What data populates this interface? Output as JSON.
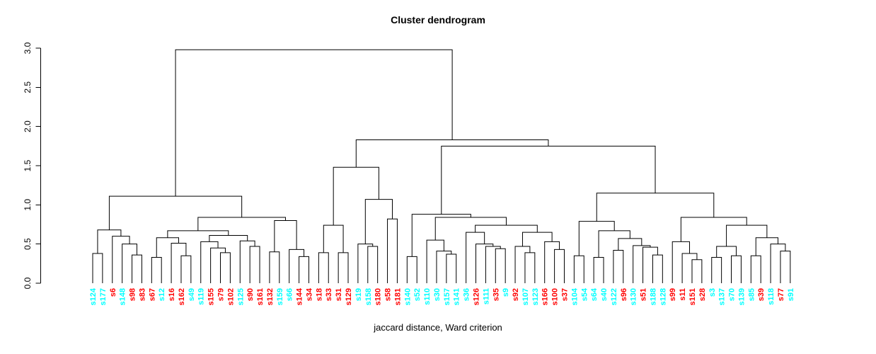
{
  "title": "Cluster dendrogram",
  "xlabel": "jaccard distance, Ward criterion",
  "y_axis": {
    "ticks": [
      0,
      0.5,
      1,
      1.5,
      2,
      2.5,
      3
    ],
    "tick_labels": [
      "0.0",
      "0.5",
      "1.0",
      "1.5",
      "2.0",
      "2.5",
      "3.0"
    ],
    "range": [
      0,
      3
    ]
  },
  "colors": {
    "line": "#000000",
    "axis": "#000000",
    "background": "#ffffff",
    "cluster_red": "#ff0000",
    "cluster_cyan": "#00ffff"
  },
  "chart_data": {
    "type": "dendrogram",
    "title": "Cluster dendrogram",
    "sub": "jaccard distance, Ward criterion",
    "ylim": [
      0,
      3
    ],
    "leaves": [
      {
        "label": "s124",
        "cluster": "cyan"
      },
      {
        "label": "s177",
        "cluster": "cyan"
      },
      {
        "label": "s6",
        "cluster": "red"
      },
      {
        "label": "s148",
        "cluster": "cyan"
      },
      {
        "label": "s98",
        "cluster": "red"
      },
      {
        "label": "s83",
        "cluster": "red"
      },
      {
        "label": "s67",
        "cluster": "red"
      },
      {
        "label": "s12",
        "cluster": "cyan"
      },
      {
        "label": "s16",
        "cluster": "red"
      },
      {
        "label": "s162",
        "cluster": "red"
      },
      {
        "label": "s49",
        "cluster": "cyan"
      },
      {
        "label": "s119",
        "cluster": "cyan"
      },
      {
        "label": "s155",
        "cluster": "red"
      },
      {
        "label": "s79",
        "cluster": "red"
      },
      {
        "label": "s102",
        "cluster": "red"
      },
      {
        "label": "s125",
        "cluster": "cyan"
      },
      {
        "label": "s90",
        "cluster": "red"
      },
      {
        "label": "s161",
        "cluster": "red"
      },
      {
        "label": "s132",
        "cluster": "red"
      },
      {
        "label": "s159",
        "cluster": "cyan"
      },
      {
        "label": "s66",
        "cluster": "cyan"
      },
      {
        "label": "s144",
        "cluster": "red"
      },
      {
        "label": "s34",
        "cluster": "red"
      },
      {
        "label": "s18",
        "cluster": "red"
      },
      {
        "label": "s33",
        "cluster": "red"
      },
      {
        "label": "s31",
        "cluster": "red"
      },
      {
        "label": "s129",
        "cluster": "red"
      },
      {
        "label": "s19",
        "cluster": "cyan"
      },
      {
        "label": "s158",
        "cluster": "cyan"
      },
      {
        "label": "s180",
        "cluster": "red"
      },
      {
        "label": "s58",
        "cluster": "red"
      },
      {
        "label": "s181",
        "cluster": "red"
      },
      {
        "label": "s140",
        "cluster": "cyan"
      },
      {
        "label": "s52",
        "cluster": "cyan"
      },
      {
        "label": "s110",
        "cluster": "cyan"
      },
      {
        "label": "s30",
        "cluster": "cyan"
      },
      {
        "label": "s157",
        "cluster": "cyan"
      },
      {
        "label": "s141",
        "cluster": "cyan"
      },
      {
        "label": "s36",
        "cluster": "cyan"
      },
      {
        "label": "s126",
        "cluster": "red"
      },
      {
        "label": "s111",
        "cluster": "cyan"
      },
      {
        "label": "s35",
        "cluster": "red"
      },
      {
        "label": "s9",
        "cluster": "cyan"
      },
      {
        "label": "s92",
        "cluster": "red"
      },
      {
        "label": "s107",
        "cluster": "cyan"
      },
      {
        "label": "s123",
        "cluster": "cyan"
      },
      {
        "label": "s166",
        "cluster": "red"
      },
      {
        "label": "s100",
        "cluster": "red"
      },
      {
        "label": "s37",
        "cluster": "red"
      },
      {
        "label": "s104",
        "cluster": "cyan"
      },
      {
        "label": "s54",
        "cluster": "cyan"
      },
      {
        "label": "s64",
        "cluster": "cyan"
      },
      {
        "label": "s40",
        "cluster": "cyan"
      },
      {
        "label": "s122",
        "cluster": "cyan"
      },
      {
        "label": "s96",
        "cluster": "red"
      },
      {
        "label": "s130",
        "cluster": "cyan"
      },
      {
        "label": "s51",
        "cluster": "red"
      },
      {
        "label": "s188",
        "cluster": "cyan"
      },
      {
        "label": "s128",
        "cluster": "cyan"
      },
      {
        "label": "s99",
        "cluster": "red"
      },
      {
        "label": "s11",
        "cluster": "red"
      },
      {
        "label": "s151",
        "cluster": "red"
      },
      {
        "label": "s28",
        "cluster": "red"
      },
      {
        "label": "s3",
        "cluster": "cyan"
      },
      {
        "label": "s137",
        "cluster": "cyan"
      },
      {
        "label": "s70",
        "cluster": "cyan"
      },
      {
        "label": "s139",
        "cluster": "cyan"
      },
      {
        "label": "s85",
        "cluster": "cyan"
      },
      {
        "label": "s39",
        "cluster": "red"
      },
      {
        "label": "s118",
        "cluster": "cyan"
      },
      {
        "label": "s77",
        "cluster": "red"
      },
      {
        "label": "s91",
        "cluster": "cyan"
      }
    ],
    "tree": {
      "h": 2.98,
      "c": [
        {
          "h": 1.11,
          "c": [
            {
              "h": 0.68,
              "c": [
                {
                  "h": 0.38,
                  "c": [
                    "s124",
                    "s177"
                  ]
                },
                {
                  "h": 0.6,
                  "c": [
                    "s6",
                    {
                      "h": 0.5,
                      "c": [
                        "s148",
                        {
                          "h": 0.36,
                          "c": [
                            "s98",
                            "s83"
                          ]
                        }
                      ]
                    }
                  ]
                }
              ]
            },
            {
              "h": 0.84,
              "c": [
                {
                  "h": 0.67,
                  "c": [
                    {
                      "h": 0.58,
                      "c": [
                        {
                          "h": 0.33,
                          "c": [
                            "s67",
                            "s12"
                          ]
                        },
                        {
                          "h": 0.51,
                          "c": [
                            "s16",
                            {
                              "h": 0.35,
                              "c": [
                                "s162",
                                "s49"
                              ]
                            }
                          ]
                        }
                      ]
                    },
                    {
                      "h": 0.61,
                      "c": [
                        {
                          "h": 0.53,
                          "c": [
                            "s119",
                            {
                              "h": 0.45,
                              "c": [
                                "s155",
                                {
                                  "h": 0.39,
                                  "c": [
                                    "s79",
                                    "s102"
                                  ]
                                }
                              ]
                            }
                          ]
                        },
                        {
                          "h": 0.54,
                          "c": [
                            "s125",
                            {
                              "h": 0.47,
                              "c": [
                                "s90",
                                "s161"
                              ]
                            }
                          ]
                        }
                      ]
                    }
                  ]
                },
                {
                  "h": 0.8,
                  "c": [
                    {
                      "h": 0.4,
                      "c": [
                        "s132",
                        "s159"
                      ]
                    },
                    {
                      "h": 0.43,
                      "c": [
                        "s66",
                        {
                          "h": 0.34,
                          "c": [
                            "s144",
                            "s34"
                          ]
                        }
                      ]
                    }
                  ]
                }
              ]
            }
          ]
        },
        {
          "h": 1.83,
          "c": [
            {
              "h": 1.48,
              "c": [
                {
                  "h": 0.74,
                  "c": [
                    {
                      "h": 0.39,
                      "c": [
                        "s18",
                        "s33"
                      ]
                    },
                    {
                      "h": 0.39,
                      "c": [
                        "s31",
                        "s129"
                      ]
                    }
                  ]
                },
                {
                  "h": 1.07,
                  "c": [
                    {
                      "h": 0.5,
                      "c": [
                        "s19",
                        {
                          "h": 0.47,
                          "c": [
                            "s158",
                            "s180"
                          ]
                        }
                      ]
                    },
                    {
                      "h": 0.82,
                      "c": [
                        "s58",
                        "s181"
                      ]
                    }
                  ]
                }
              ]
            },
            {
              "h": 1.75,
              "c": [
                {
                  "h": 0.88,
                  "c": [
                    {
                      "h": 0.34,
                      "c": [
                        "s140",
                        "s52"
                      ]
                    },
                    {
                      "h": 0.84,
                      "c": [
                        {
                          "h": 0.55,
                          "c": [
                            "s110",
                            {
                              "h": 0.41,
                              "c": [
                                "s30",
                                {
                                  "h": 0.37,
                                  "c": [
                                    "s157",
                                    "s141"
                                  ]
                                }
                              ]
                            }
                          ]
                        },
                        {
                          "h": 0.74,
                          "c": [
                            {
                              "h": 0.65,
                              "c": [
                                "s36",
                                {
                                  "h": 0.5,
                                  "c": [
                                    "s126",
                                    {
                                      "h": 0.47,
                                      "c": [
                                        "s111",
                                        {
                                          "h": 0.44,
                                          "c": [
                                            "s35",
                                            "s9"
                                          ]
                                        }
                                      ]
                                    }
                                  ]
                                }
                              ]
                            },
                            {
                              "h": 0.65,
                              "c": [
                                {
                                  "h": 0.47,
                                  "c": [
                                    "s92",
                                    {
                                      "h": 0.39,
                                      "c": [
                                        "s107",
                                        "s123"
                                      ]
                                    }
                                  ]
                                },
                                {
                                  "h": 0.53,
                                  "c": [
                                    "s166",
                                    {
                                      "h": 0.43,
                                      "c": [
                                        "s100",
                                        "s37"
                                      ]
                                    }
                                  ]
                                }
                              ]
                            }
                          ]
                        }
                      ]
                    }
                  ]
                },
                {
                  "h": 1.15,
                  "c": [
                    {
                      "h": 0.79,
                      "c": [
                        {
                          "h": 0.35,
                          "c": [
                            "s104",
                            "s54"
                          ]
                        },
                        {
                          "h": 0.67,
                          "c": [
                            {
                              "h": 0.33,
                              "c": [
                                "s64",
                                "s40"
                              ]
                            },
                            {
                              "h": 0.57,
                              "c": [
                                {
                                  "h": 0.42,
                                  "c": [
                                    "s122",
                                    "s96"
                                  ]
                                },
                                {
                                  "h": 0.48,
                                  "c": [
                                    "s130",
                                    {
                                      "h": 0.46,
                                      "c": [
                                        "s51",
                                        {
                                          "h": 0.36,
                                          "c": [
                                            "s188",
                                            "s128"
                                          ]
                                        }
                                      ]
                                    }
                                  ]
                                }
                              ]
                            }
                          ]
                        }
                      ]
                    },
                    {
                      "h": 0.84,
                      "c": [
                        {
                          "h": 0.53,
                          "c": [
                            "s99",
                            {
                              "h": 0.38,
                              "c": [
                                "s11",
                                {
                                  "h": 0.3,
                                  "c": [
                                    "s151",
                                    "s28"
                                  ]
                                }
                              ]
                            }
                          ]
                        },
                        {
                          "h": 0.74,
                          "c": [
                            {
                              "h": 0.47,
                              "c": [
                                {
                                  "h": 0.33,
                                  "c": [
                                    "s3",
                                    "s137"
                                  ]
                                },
                                {
                                  "h": 0.35,
                                  "c": [
                                    "s70",
                                    "s139"
                                  ]
                                }
                              ]
                            },
                            {
                              "h": 0.58,
                              "c": [
                                {
                                  "h": 0.35,
                                  "c": [
                                    "s85",
                                    "s39"
                                  ]
                                },
                                {
                                  "h": 0.5,
                                  "c": [
                                    "s118",
                                    {
                                      "h": 0.41,
                                      "c": [
                                        "s77",
                                        "s91"
                                      ]
                                    }
                                  ]
                                }
                              ]
                            }
                          ]
                        }
                      ]
                    }
                  ]
                }
              ]
            }
          ]
        }
      ]
    }
  }
}
